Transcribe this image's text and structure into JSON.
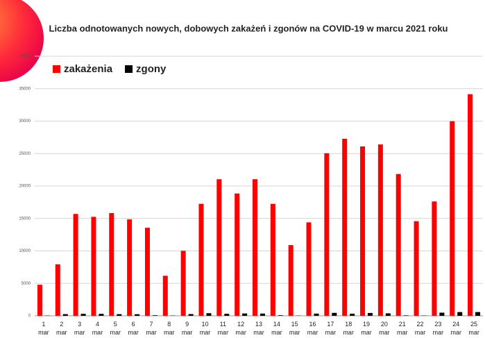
{
  "chart_data": {
    "type": "bar",
    "title": "Liczba odnotowanych nowych, dobowych zakażeń i zgonów na COVID-19 w marcu 2021 roku",
    "categories": [
      "1 mar",
      "2 mar",
      "3 mar",
      "4 mar",
      "5 mar",
      "6 mar",
      "7 mar",
      "8 mar",
      "9 mar",
      "10 mar",
      "11 mar",
      "12 mar",
      "13 mar",
      "14 mar",
      "15 mar",
      "16 mar",
      "17 mar",
      "18 mar",
      "19 mar",
      "20 mar",
      "21 mar",
      "22 mar",
      "23 mar",
      "24 mar",
      "25 mar"
    ],
    "series": [
      {
        "name": "zakażenia",
        "color": "#ff0000",
        "values": [
          4786,
          7937,
          15698,
          15250,
          15830,
          14857,
          13568,
          6170,
          10021,
          17260,
          21045,
          18846,
          21048,
          17255,
          10896,
          14396,
          25052,
          27278,
          26097,
          26405,
          21849,
          14578,
          17620,
          29978,
          34151
        ]
      },
      {
        "name": "zgony",
        "color": "#000000",
        "values": [
          40,
          252,
          304,
          296,
          252,
          240,
          85,
          38,
          264,
          398,
          305,
          356,
          342,
          89,
          34,
          338,
          452,
          322,
          434,
          374,
          68,
          45,
          483,
          575,
          575
        ]
      }
    ],
    "ylim": [
      0,
      40000
    ],
    "yticks": [
      0,
      5000,
      10000,
      15000,
      20000,
      25000,
      30000,
      35000,
      40000
    ],
    "grid": true
  }
}
